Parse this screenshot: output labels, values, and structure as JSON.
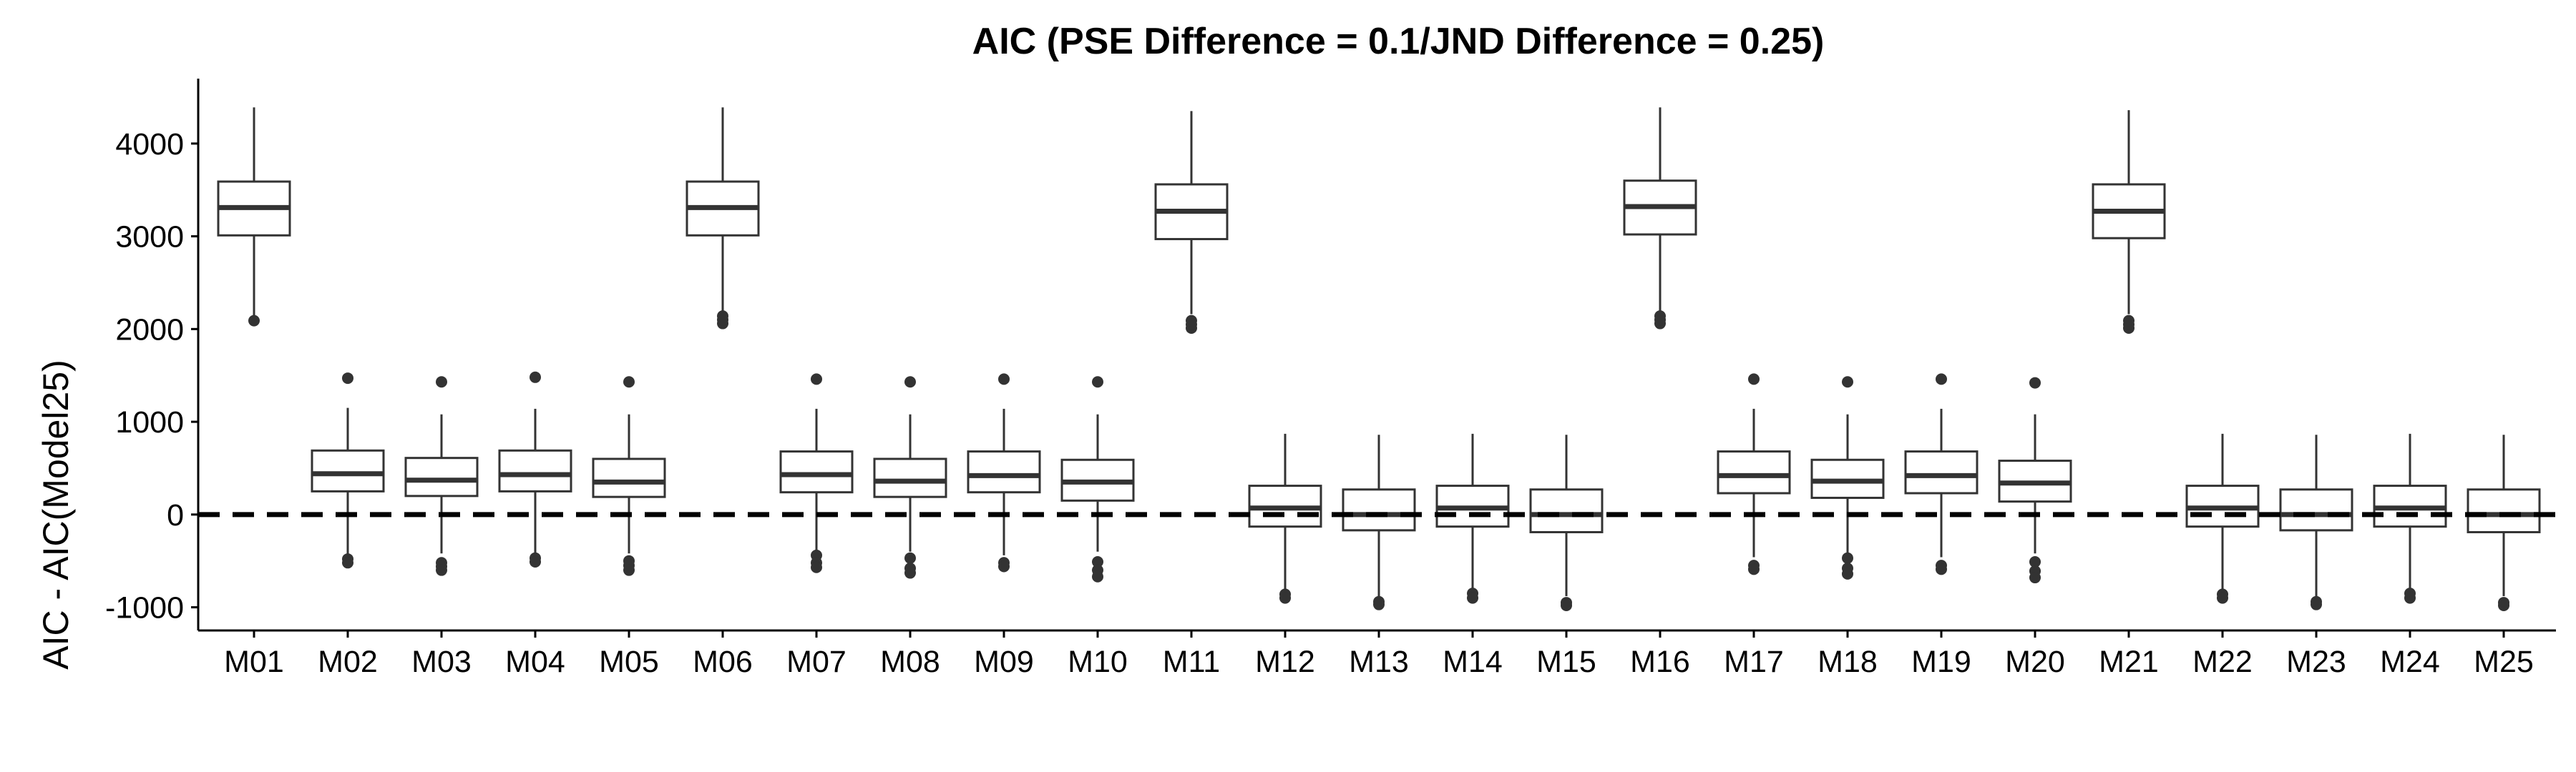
{
  "chart_data": {
    "type": "boxplot",
    "title": "AIC (PSE Difference = 0.1/JND Difference = 0.25)",
    "xlabel": "",
    "ylabel": "AIC - AIC(Model25)",
    "ylim": [
      -1250,
      4700
    ],
    "yticks": [
      -1000,
      0,
      1000,
      2000,
      3000,
      4000
    ],
    "reference_line": {
      "y": 0,
      "style": "dashed"
    },
    "grid": false,
    "legend": "none",
    "colors": {
      "box_fill": "#ffffff",
      "box_stroke": "#333333",
      "outlier": "#333333",
      "axis": "#000000"
    },
    "categories": [
      "M01",
      "M02",
      "M03",
      "M04",
      "M05",
      "M06",
      "M07",
      "M08",
      "M09",
      "M10",
      "M11",
      "M12",
      "M13",
      "M14",
      "M15",
      "M16",
      "M17",
      "M18",
      "M19",
      "M20",
      "M21",
      "M22",
      "M23",
      "M24",
      "M25"
    ],
    "boxes": [
      {
        "name": "M01",
        "min": 2120,
        "q1": 3010,
        "median": 3310,
        "q3": 3590,
        "max": 4390,
        "outliers": [
          2090
        ]
      },
      {
        "name": "M02",
        "min": -460,
        "q1": 250,
        "median": 440,
        "q3": 690,
        "max": 1150,
        "outliers": [
          1470,
          -480,
          -520
        ]
      },
      {
        "name": "M03",
        "min": -420,
        "q1": 200,
        "median": 370,
        "q3": 610,
        "max": 1080,
        "outliers": [
          1430,
          -520,
          -560,
          -600
        ]
      },
      {
        "name": "M04",
        "min": -460,
        "q1": 250,
        "median": 430,
        "q3": 690,
        "max": 1140,
        "outliers": [
          1480,
          -470,
          -510
        ]
      },
      {
        "name": "M05",
        "min": -420,
        "q1": 190,
        "median": 350,
        "q3": 600,
        "max": 1080,
        "outliers": [
          1430,
          -500,
          -550,
          -600
        ]
      },
      {
        "name": "M06",
        "min": 2180,
        "q1": 3010,
        "median": 3310,
        "q3": 3590,
        "max": 4390,
        "outliers": [
          2060,
          2100,
          2140
        ]
      },
      {
        "name": "M07",
        "min": -440,
        "q1": 240,
        "median": 430,
        "q3": 680,
        "max": 1140,
        "outliers": [
          1460,
          -440,
          -520,
          -570
        ]
      },
      {
        "name": "M08",
        "min": -400,
        "q1": 190,
        "median": 360,
        "q3": 600,
        "max": 1080,
        "outliers": [
          1430,
          -470,
          -580,
          -630
        ]
      },
      {
        "name": "M09",
        "min": -440,
        "q1": 240,
        "median": 420,
        "q3": 680,
        "max": 1140,
        "outliers": [
          1460,
          -520,
          -560
        ]
      },
      {
        "name": "M10",
        "min": -400,
        "q1": 150,
        "median": 350,
        "q3": 590,
        "max": 1080,
        "outliers": [
          1430,
          -510,
          -600,
          -670
        ]
      },
      {
        "name": "M11",
        "min": 2160,
        "q1": 2970,
        "median": 3270,
        "q3": 3560,
        "max": 4350,
        "outliers": [
          2010,
          2050,
          2090
        ]
      },
      {
        "name": "M12",
        "min": -820,
        "q1": -130,
        "median": 70,
        "q3": 310,
        "max": 870,
        "outliers": [
          -860,
          -900
        ]
      },
      {
        "name": "M13",
        "min": -880,
        "q1": -170,
        "median": 0,
        "q3": 270,
        "max": 860,
        "outliers": [
          -940,
          -970
        ]
      },
      {
        "name": "M14",
        "min": -820,
        "q1": -130,
        "median": 70,
        "q3": 310,
        "max": 870,
        "outliers": [
          -850,
          -900
        ]
      },
      {
        "name": "M15",
        "min": -880,
        "q1": -190,
        "median": 0,
        "q3": 270,
        "max": 860,
        "outliers": [
          -950,
          -980
        ]
      },
      {
        "name": "M16",
        "min": 2180,
        "q1": 3020,
        "median": 3320,
        "q3": 3600,
        "max": 4390,
        "outliers": [
          2060,
          2100,
          2140
        ]
      },
      {
        "name": "M17",
        "min": -460,
        "q1": 230,
        "median": 420,
        "q3": 680,
        "max": 1140,
        "outliers": [
          1460,
          -550,
          -590
        ]
      },
      {
        "name": "M18",
        "min": -420,
        "q1": 180,
        "median": 360,
        "q3": 590,
        "max": 1080,
        "outliers": [
          1430,
          -470,
          -580,
          -640
        ]
      },
      {
        "name": "M19",
        "min": -460,
        "q1": 230,
        "median": 420,
        "q3": 680,
        "max": 1140,
        "outliers": [
          1460,
          -550,
          -590
        ]
      },
      {
        "name": "M20",
        "min": -420,
        "q1": 140,
        "median": 340,
        "q3": 580,
        "max": 1080,
        "outliers": [
          1420,
          -510,
          -610,
          -680
        ]
      },
      {
        "name": "M21",
        "min": 2160,
        "q1": 2980,
        "median": 3270,
        "q3": 3560,
        "max": 4360,
        "outliers": [
          2010,
          2050,
          2090
        ]
      },
      {
        "name": "M22",
        "min": -820,
        "q1": -130,
        "median": 70,
        "q3": 310,
        "max": 870,
        "outliers": [
          -860,
          -900
        ]
      },
      {
        "name": "M23",
        "min": -880,
        "q1": -170,
        "median": 0,
        "q3": 270,
        "max": 860,
        "outliers": [
          -940,
          -970
        ]
      },
      {
        "name": "M24",
        "min": -820,
        "q1": -130,
        "median": 70,
        "q3": 310,
        "max": 870,
        "outliers": [
          -850,
          -900
        ]
      },
      {
        "name": "M25",
        "min": -880,
        "q1": -190,
        "median": 0,
        "q3": 270,
        "max": 860,
        "outliers": [
          -950,
          -980
        ]
      }
    ]
  }
}
